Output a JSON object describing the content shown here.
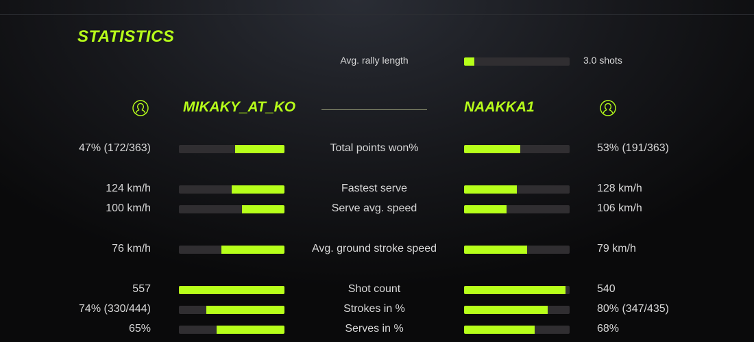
{
  "title": "STATISTICS",
  "accent_color": "#b7ff1a",
  "rally": {
    "label": "Avg. rally length",
    "value": "3.0 shots",
    "fill": 0.1
  },
  "players": {
    "left": {
      "name": "MIKAKY_AT_KO",
      "icon": "user-icon"
    },
    "right": {
      "name": "NAAKKA1",
      "icon": "user-icon"
    }
  },
  "stats": [
    {
      "label": "Total points won%",
      "left": "47% (172/363)",
      "right": "53% (191/363)",
      "left_fill": 0.47,
      "right_fill": 0.53
    },
    {
      "label": "Fastest serve",
      "left": "124 km/h",
      "right": "128 km/h",
      "left_fill": 0.5,
      "right_fill": 0.5
    },
    {
      "label": "Serve avg. speed",
      "left": "100 km/h",
      "right": "106 km/h",
      "left_fill": 0.4,
      "right_fill": 0.4
    },
    {
      "label": "Avg. ground stroke speed",
      "left": "76 km/h",
      "right": "79 km/h",
      "left_fill": 0.6,
      "right_fill": 0.6
    },
    {
      "label": "Shot count",
      "left": "557",
      "right": "540",
      "left_fill": 1.0,
      "right_fill": 0.96
    },
    {
      "label": "Strokes in %",
      "left": "74% (330/444)",
      "right": "80% (347/435)",
      "left_fill": 0.74,
      "right_fill": 0.79
    },
    {
      "label": "Serves in %",
      "left": "65%",
      "right": "68%",
      "left_fill": 0.64,
      "right_fill": 0.67
    }
  ]
}
